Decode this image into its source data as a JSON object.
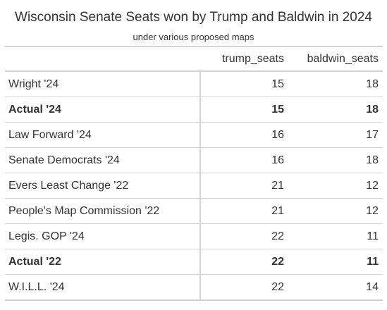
{
  "header": {
    "title": "Wisconsin Senate Seats won by Trump and Baldwin in 2024",
    "subtitle": "under various proposed maps"
  },
  "chart_data": {
    "type": "table",
    "columns": [
      "",
      "trump_seats",
      "baldwin_seats"
    ],
    "rows": [
      {
        "label": "Wright '24",
        "trump_seats": 15,
        "baldwin_seats": 18,
        "bold": false
      },
      {
        "label": "Actual '24",
        "trump_seats": 15,
        "baldwin_seats": 18,
        "bold": true
      },
      {
        "label": "Law Forward '24",
        "trump_seats": 16,
        "baldwin_seats": 17,
        "bold": false
      },
      {
        "label": "Senate Democrats '24",
        "trump_seats": 16,
        "baldwin_seats": 18,
        "bold": false
      },
      {
        "label": "Evers Least Change '22",
        "trump_seats": 21,
        "baldwin_seats": 12,
        "bold": false
      },
      {
        "label": "People's Map Commission '22",
        "trump_seats": 21,
        "baldwin_seats": 12,
        "bold": false
      },
      {
        "label": "Legis. GOP '24",
        "trump_seats": 22,
        "baldwin_seats": 11,
        "bold": false
      },
      {
        "label": "Actual '22",
        "trump_seats": 22,
        "baldwin_seats": 11,
        "bold": true
      },
      {
        "label": "W.I.L.L. '24",
        "trump_seats": 22,
        "baldwin_seats": 14,
        "bold": false
      }
    ]
  }
}
